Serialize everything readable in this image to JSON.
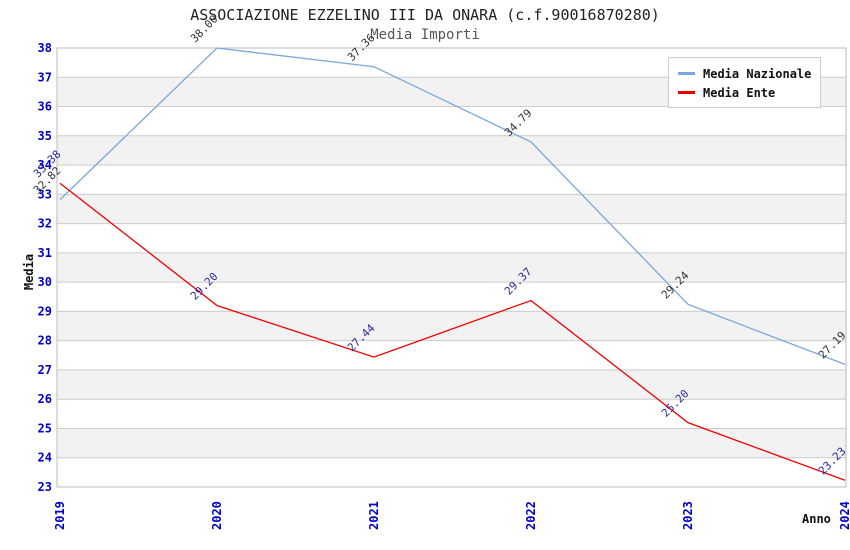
{
  "chart_data": {
    "type": "line",
    "title": "ASSOCIAZIONE EZZELINO III DA ONARA (c.f.90016870280)",
    "subtitle": "Media Importi",
    "xlabel": "Anno",
    "ylabel": "Media",
    "x": [
      "2019",
      "2020",
      "2021",
      "2022",
      "2023",
      "2024"
    ],
    "ylim": [
      23,
      38
    ],
    "ytick_step": 1,
    "grid": "horizontal-bands",
    "legend_position": "top-right",
    "point_label_decimals": 2,
    "series": [
      {
        "name": "Media Nazionale",
        "color": "#7AA7DB",
        "label_color": "#333333",
        "values": [
          32.82,
          38.0,
          37.36,
          34.79,
          29.24,
          27.19
        ]
      },
      {
        "name": "Media Ente",
        "color": "#EE0000",
        "label_color": "#2A2A99",
        "values": [
          33.38,
          29.2,
          27.44,
          29.37,
          25.2,
          23.23
        ]
      }
    ]
  },
  "style": {
    "axis_tick_color": "#0000CC",
    "band_color": "#F2F2F2",
    "gridline_color": "#CCCCCC",
    "plot_border_color": "#BBBBBB"
  }
}
